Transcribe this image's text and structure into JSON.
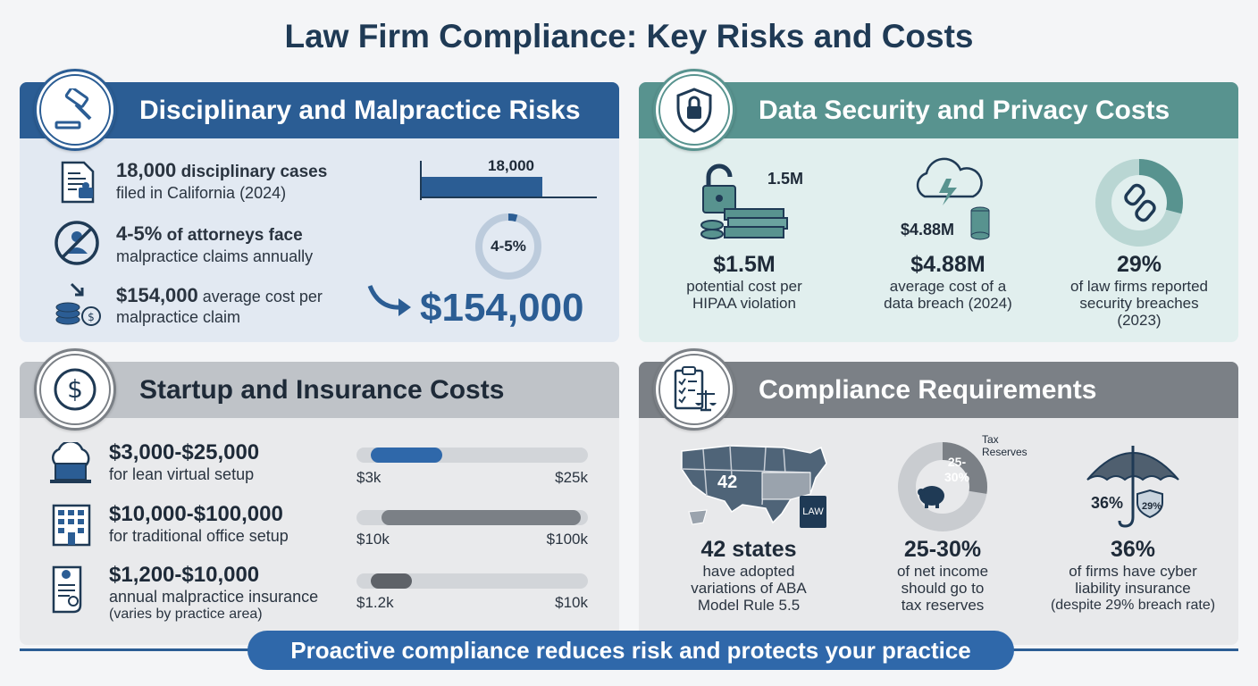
{
  "title": "Law Firm Compliance: Key Risks and Costs",
  "colors": {
    "navy": "#2b5d94",
    "teal": "#58938f",
    "gray": "#7b8086",
    "light_gray": "#bfc3c8"
  },
  "panels": {
    "disciplinary": {
      "title": "Disciplinary and Malpractice Risks",
      "icon": "gavel-icon",
      "items": [
        {
          "icon": "document-stamp-icon",
          "bold": "18,000",
          "rest": " disciplinary cases",
          "line2": "filed in California (2024)"
        },
        {
          "icon": "no-attorney-icon",
          "bold": "4-5%",
          "rest": " of attorneys face",
          "line2": "malpractice claims annually"
        },
        {
          "icon": "coins-down-icon",
          "bold": "$154,000",
          "rest": " average cost per",
          "line2": "malpractice claim"
        }
      ],
      "bar_label": "18,000",
      "donut_label": "4-5%",
      "donut_percent": 4.5,
      "big_value": "$154,000"
    },
    "data_security": {
      "title": "Data Security and Privacy Costs",
      "icon": "shield-lock-icon",
      "stats": [
        {
          "icon": "unlocked-cash-icon",
          "icon_label": "1.5M",
          "value": "$1.5M",
          "line1": "potential cost per",
          "line2": "HIPAA violation",
          "line3": ""
        },
        {
          "icon": "cloud-lightning-icon",
          "icon_label": "$4.88M",
          "value": "$4.88M",
          "line1": "average cost of a",
          "line2": "data breach (2024)",
          "line3": ""
        },
        {
          "icon": "broken-link-icon",
          "icon_label": "",
          "value": "29%",
          "line1": "of law firms reported",
          "line2": "security breaches",
          "line3": "(2023)"
        }
      ],
      "donut_percent": 29
    },
    "startup": {
      "title": "Startup and Insurance Costs",
      "icon": "dollar-icon",
      "items": [
        {
          "icon": "cloud-laptop-icon",
          "value": "$3,000-$25,000",
          "line1": "for lean virtual setup",
          "line2": "",
          "min_label": "$3k",
          "max_label": "$25k",
          "fill_start": 0.06,
          "fill_end": 0.37,
          "color": "#2f68aa"
        },
        {
          "icon": "office-building-icon",
          "value": "$10,000-$100,000",
          "line1": "for traditional office setup",
          "line2": "",
          "min_label": "$10k",
          "max_label": "$100k",
          "fill_start": 0.11,
          "fill_end": 0.97,
          "color": "#7b8086"
        },
        {
          "icon": "insurance-scroll-icon",
          "value": "$1,200-$10,000",
          "line1": "annual malpractice insurance",
          "line2": "(varies by practice area)",
          "min_label": "$1.2k",
          "max_label": "$10k",
          "fill_start": 0.06,
          "fill_end": 0.24,
          "color": "#5e6268"
        }
      ]
    },
    "compliance": {
      "title": "Compliance Requirements",
      "icon": "checklist-scales-icon",
      "stats": [
        {
          "icon": "us-map-icon",
          "icon_label": "42",
          "extra_label": "LAW",
          "value": "42 states",
          "line1": "have adopted",
          "line2": "variations of ABA",
          "line3": "Model Rule 5.5"
        },
        {
          "icon": "piggy-bank-icon",
          "icon_label": "25-\n30%",
          "extra_label": "Tax\nReserves",
          "value": "25-30%",
          "line1": "of net income",
          "line2": "should go to",
          "line3": "tax reserves"
        },
        {
          "icon": "umbrella-shield-icon",
          "icon_label": "36%",
          "extra_label": "29%",
          "value": "36%",
          "line1": "of firms have cyber",
          "line2": "liability insurance",
          "line3": "(despite 29% breach rate)"
        }
      ],
      "tax_percent": 27.5
    }
  },
  "footer": "Proactive compliance reduces risk and protects your practice"
}
